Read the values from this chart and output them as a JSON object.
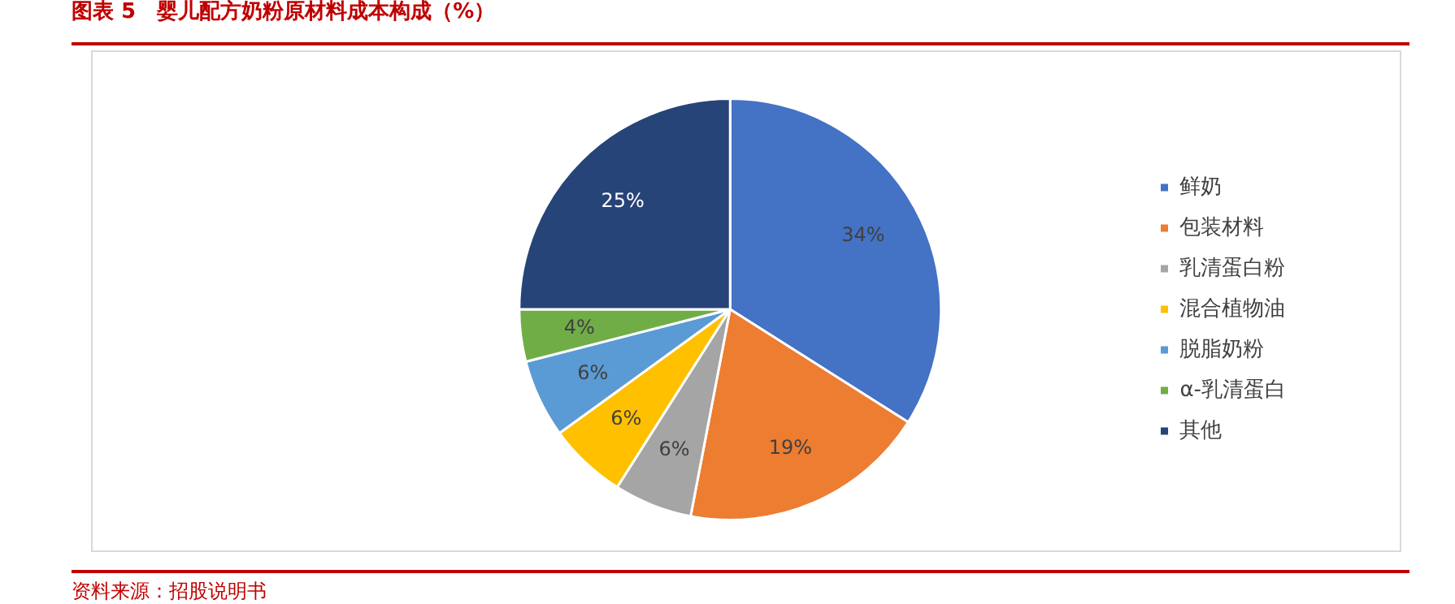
{
  "chart_data": {
    "type": "pie",
    "title": "图表 5　婴儿配方奶粉原材料成本构成（%）",
    "categories": [
      "鲜奶",
      "包装材料",
      "乳清蛋白粉",
      "混合植物油",
      "脱脂奶粉",
      "α-乳清蛋白",
      "其他"
    ],
    "values": [
      34,
      19,
      6,
      6,
      6,
      4,
      25
    ],
    "colors": [
      "#4472c4",
      "#ed7d31",
      "#a5a5a5",
      "#ffc000",
      "#5b9bd5",
      "#70ad47",
      "#264478"
    ],
    "value_labels": [
      "34%",
      "19%",
      "6%",
      "6%",
      "6%",
      "4%",
      "25%"
    ],
    "legend": "right",
    "annotations": [
      "资料来源：招股说明书"
    ]
  }
}
